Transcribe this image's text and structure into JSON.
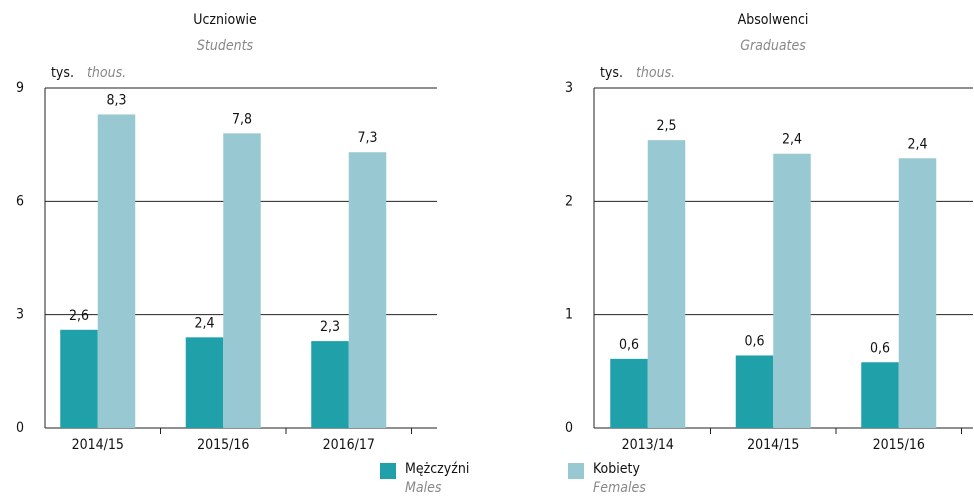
{
  "chart_data": [
    {
      "type": "bar",
      "title": "Uczniowie",
      "subtitle": "Students",
      "unit_label": "tys.",
      "unit_label_en": "thous.",
      "categories": [
        "2014/15",
        "2015/16",
        "2016/17"
      ],
      "series": [
        {
          "name": "Mężczyźni",
          "name_en": "Males",
          "color": "#20a0a8",
          "values": [
            2.6,
            2.4,
            2.3
          ],
          "value_labels": [
            "2,6",
            "2,4",
            "2,3"
          ]
        },
        {
          "name": "Kobiety",
          "name_en": "Females",
          "color": "#98c8d2",
          "values": [
            8.3,
            7.8,
            7.3
          ],
          "value_labels": [
            "8,3",
            "7,8",
            "7,3"
          ]
        }
      ],
      "ylim": [
        0,
        9
      ],
      "yticks": [
        0,
        3,
        6,
        9
      ],
      "grid": true
    },
    {
      "type": "bar",
      "title": "Absolwenci",
      "subtitle": "Graduates",
      "unit_label": "tys.",
      "unit_label_en": "thous.",
      "categories": [
        "2013/14",
        "2014/15",
        "2015/16"
      ],
      "series": [
        {
          "name": "Mężczyźni",
          "name_en": "Males",
          "color": "#20a0a8",
          "values": [
            0.61,
            0.64,
            0.58
          ],
          "value_labels": [
            "0,6",
            "0,6",
            "0,6"
          ]
        },
        {
          "name": "Kobiety",
          "name_en": "Females",
          "color": "#98c8d2",
          "values": [
            2.54,
            2.42,
            2.38
          ],
          "value_labels": [
            "2,5",
            "2,4",
            "2,4"
          ]
        }
      ],
      "ylim": [
        0,
        3
      ],
      "yticks": [
        0,
        1,
        2,
        3
      ],
      "grid": true
    }
  ]
}
